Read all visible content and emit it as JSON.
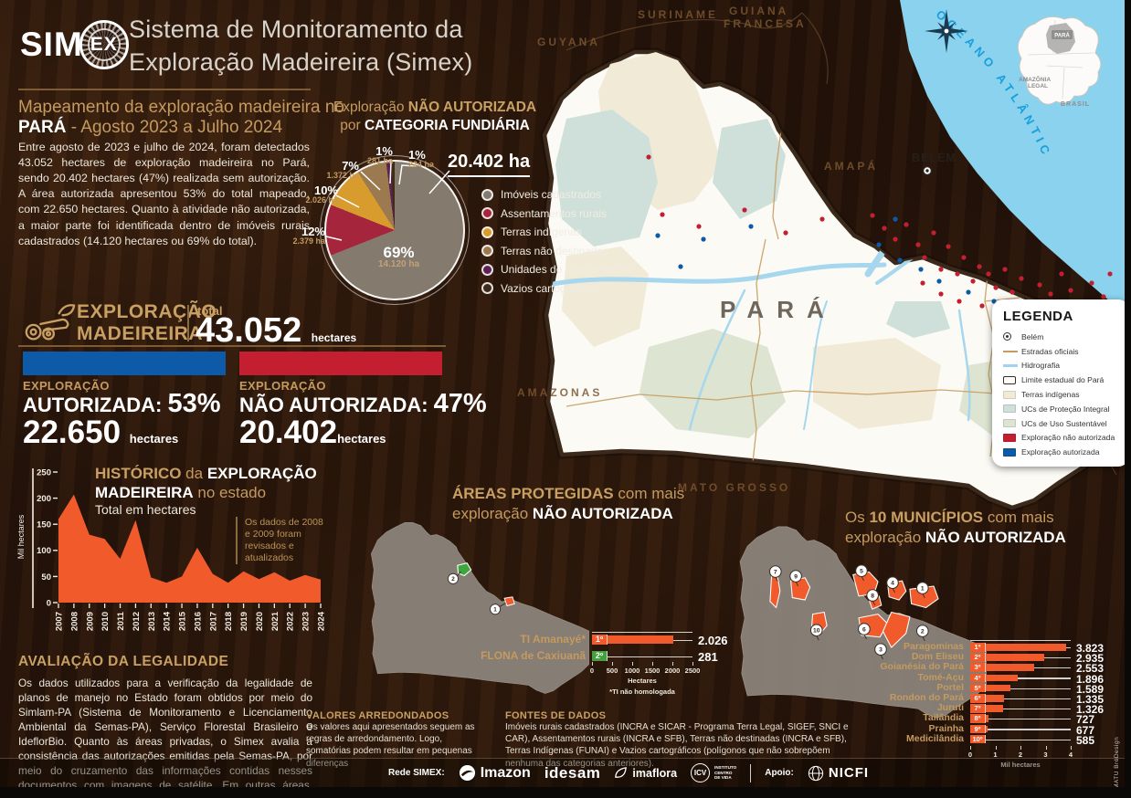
{
  "header": {
    "logo_sim": "SIM",
    "logo_ex": "EX",
    "title_line1": "Sistema de Monitoramento da",
    "title_line2": "Exploração Madeireira (Simex)"
  },
  "intro": {
    "heading_pre": "Mapeamento da exploração madeireira no",
    "heading_state": "PARÁ",
    "heading_period": " - Agosto 2023 a Julho 2024",
    "body": "Entre agosto de 2023 e julho de 2024, foram detectados 43.052 hectares de exploração madeireira no Pará, sendo 20.402 hectares (47%) realizada sem autorização. A área autorizada apresentou 53% do total mapeado, com 22.650 hectares. Quanto à atividade não autorizada, a maior parte foi identificada dentro de imóveis rurais cadastrados (14.120 hectares ou 69% do total)."
  },
  "pie": {
    "title_a": "Exploração ",
    "title_b": "NÃO AUTORIZADA",
    "title_c": "por ",
    "title_d": "CATEGORIA FUNDIÁRIA",
    "total_label": "20.402 ha"
  },
  "totals": {
    "section_line1": "EXPLORAÇÃO",
    "section_line2": "MADEIREIRA",
    "total_label": "total",
    "total_value": "43.052",
    "total_unit": "hectares",
    "authorized": {
      "kicker": "EXPLORAÇÃO",
      "label": "AUTORIZADA:",
      "pct": "53%",
      "value": "22.650",
      "unit": "hectares",
      "color": "#0d5ba8"
    },
    "unauthorized": {
      "kicker": "EXPLORAÇÃO",
      "label": "NÃO AUTORIZADA:",
      "pct": "47%",
      "value": "20.402",
      "unit": "hectares",
      "color": "#c41f31"
    }
  },
  "history": {
    "title_a": "HISTÓRICO",
    "title_b": " da ",
    "title_c": "EXPLORAÇÃO",
    "title_d": "MADEIREIRA",
    "title_e": " no estado",
    "subtitle": "Total em hectares",
    "note": "Os dados de 2008 e 2009 foram revisados e atualizados"
  },
  "legality": {
    "title": "AVALIAÇÃO DA LEGALIDADE",
    "body": "Os dados utilizados para a verificação da legalidade de planos de manejo no Estado foram obtidos por meio do Simlam-PA (Sistema de Monitoramento e Licenciamento Ambiental da Semas-PA), Serviço Florestal Brasileiro e IdeflorBio. Quanto às áreas privadas, o Simex avalia a consistência das autorizações emitidas pela Semas-PA, por meio do cruzamento das informações contidas nesses documentos com imagens de satélite. Em outras áreas, como florestas sob concessão, o sistema apenas verifica a existência de autorização para eventuais explorações detectadas."
  },
  "protected_section": {
    "title_a": "ÁREAS PROTEGIDAS",
    "title_b": " com mais",
    "title_c": "exploração ",
    "title_d": "NÃO AUTORIZADA"
  },
  "municipalities_section": {
    "title_a": "Os ",
    "title_b": "10 MUNICÍPIOS",
    "title_c": " com mais",
    "title_d": "exploração ",
    "title_e": "NÃO AUTORIZADA"
  },
  "map": {
    "ocean": "OCEANO ATLÂNTICO",
    "state_label": "PARÁ",
    "capital": "BELÉM",
    "neighbors": [
      "GUYANA",
      "SURINAME",
      "GUIANA",
      "FRANCESA",
      "AMAPÁ",
      "AMAZONAS",
      "MATO GROSSO",
      "TOCANTINS"
    ],
    "inset": {
      "para": "PARÁ",
      "amazonia_line1": "AMAZÔNIA",
      "amazonia_line2": "LEGAL",
      "brasil": "BRASIL"
    },
    "legend": {
      "title": "LEGENDA",
      "items": [
        {
          "symbol": "capital-dot",
          "label": "Belém"
        },
        {
          "symbol": "line",
          "color": "#c79d5f",
          "label": "Estradas oficiais"
        },
        {
          "symbol": "line",
          "color": "#9ed4ee",
          "label": "Hidrografia"
        },
        {
          "symbol": "outline",
          "label": "Limite estadual do Pará"
        },
        {
          "symbol": "fill",
          "color": "#f1ead6",
          "label": "Terras indígenas"
        },
        {
          "symbol": "fill",
          "color": "#cfe0db",
          "label": "UCs de Proteção Integral"
        },
        {
          "symbol": "fill",
          "color": "#dde4d1",
          "label": "UCs de Uso Sustentável"
        },
        {
          "symbol": "fill",
          "color": "#c41f31",
          "label": "Exploração não autorizada"
        },
        {
          "symbol": "fill",
          "color": "#0d5ba8",
          "label": "Exploração autorizada"
        }
      ]
    }
  },
  "footnotes": {
    "rounded_title": "VALORES ARREDONDADOS",
    "rounded_body": "Os valores aqui apresentados seguem as regras de arredondamento. Logo, somatórias podem resultar em pequenas diferenças",
    "sources_title": "FONTES DE DADOS",
    "sources_body": "Imóveis rurais cadastrados (INCRA e SICAR - Programa Terra Legal, SIGEF, SNCI e CAR), Assentamentos rurais (INCRA e SFB), Terras não destinadas (INCRA e SFB), Terras Indígenas (FUNAI) e Vazios cartográficos (polígonos que não sobrepõem nenhuma das categorias anteriores)."
  },
  "footer": {
    "rede_label": "Rede SIMEX:",
    "logo_imazon": "Imazon",
    "logo_idesam": "idesam",
    "logo_imaflora": "imaflora",
    "logo_icv": "ICV",
    "logo_icv_line1": "INSTITUTO",
    "logo_icv_line2": "CENTRO",
    "logo_icv_line3": "DE VIDA",
    "apoio_label": "Apoio:",
    "logo_nicfi": "NICFI",
    "credit": "MATU BróDesign"
  },
  "chart_data": [
    {
      "id": "historico",
      "type": "area",
      "title": "HISTÓRICO da EXPLORAÇÃO MADEIREIRA no estado",
      "subtitle": "Total em hectares",
      "ylabel": "Mil hectares",
      "ylim": [
        0,
        250
      ],
      "yticks": [
        0,
        50,
        100,
        150,
        200,
        250
      ],
      "grid": false,
      "categories": [
        "2007",
        "2008",
        "2009",
        "2010",
        "2011",
        "2012",
        "2013",
        "2014",
        "2015",
        "2016",
        "2017",
        "2018",
        "2019",
        "2020",
        "2021",
        "2022",
        "2023",
        "2024"
      ],
      "values": [
        160,
        207,
        130,
        122,
        84,
        158,
        48,
        38,
        50,
        105,
        55,
        38,
        60,
        45,
        58,
        42,
        53,
        44
      ],
      "color": "#f15b2b",
      "annotation": "Os dados de 2008 e 2009 foram revisados e atualizados"
    },
    {
      "id": "categoria-fundiaria",
      "type": "pie",
      "title": "Exploração NÃO AUTORIZADA por CATEGORIA FUNDIÁRIA",
      "total_label": "20.402 ha",
      "slices": [
        {
          "label": "Imóveis cadastrados",
          "pct": 69,
          "pct_label": "69%",
          "ha": 14120,
          "ha_label": "14.120 ha",
          "color": "#847a6d"
        },
        {
          "label": "Assentamentos rurais",
          "pct": 12,
          "pct_label": "12%",
          "ha": 2379,
          "ha_label": "2.379 ha",
          "color": "#a5263c"
        },
        {
          "label": "Terras indígenas",
          "pct": 10,
          "pct_label": "10%",
          "ha": 2026,
          "ha_label": "2.026 ha",
          "color": "#d89b2e"
        },
        {
          "label": "Terras não destinadas",
          "pct": 7,
          "pct_label": "7%",
          "ha": 1372,
          "ha_label": "1.372 ha",
          "color": "#9b7a50"
        },
        {
          "label": "Unidades de Conservação",
          "pct": 1,
          "pct_label": "1%",
          "ha": 281,
          "ha_label": "281 ha",
          "color": "#5e2152"
        },
        {
          "label": "Vazios cartográficos",
          "pct": 1,
          "pct_label": "1%",
          "ha": 224,
          "ha_label": "224 ha",
          "color": "#3f2c18"
        }
      ]
    },
    {
      "id": "areas-protegidas",
      "type": "bar",
      "title": "ÁREAS PROTEGIDAS com mais exploração NÃO AUTORIZADA",
      "xlabel": "Hectares",
      "xlim": [
        0,
        2500
      ],
      "xticks": [
        0,
        500,
        1000,
        1500,
        2000,
        2500
      ],
      "footnote": "*TI não homologada",
      "items": [
        {
          "rank": "1º",
          "name": "TI Amanayé*",
          "value": 2026,
          "value_label": "2.026",
          "color": "#f15b2b"
        },
        {
          "rank": "2º",
          "name": "FLONA de Caxiuanã",
          "value": 281,
          "value_label": "281",
          "color": "#44a13e"
        }
      ]
    },
    {
      "id": "municipios",
      "type": "bar",
      "title": "Os 10 MUNICÍPIOS com mais exploração NÃO AUTORIZADA",
      "xlabel": "Mil hectares",
      "xlim": [
        0,
        4
      ],
      "xticks": [
        0,
        1,
        2,
        3,
        4
      ],
      "items": [
        {
          "rank": "1º",
          "name": "Paragominas",
          "value": 3.823,
          "value_label": "3.823",
          "color": "#f15b2b"
        },
        {
          "rank": "2º",
          "name": "Dom Eliseu",
          "value": 2.935,
          "value_label": "2.935",
          "color": "#f15b2b"
        },
        {
          "rank": "3º",
          "name": "Goianésia do Pará",
          "value": 2.553,
          "value_label": "2.553",
          "color": "#f15b2b"
        },
        {
          "rank": "4º",
          "name": "Tomé-Açu",
          "value": 1.896,
          "value_label": "1.896",
          "color": "#f15b2b"
        },
        {
          "rank": "5º",
          "name": "Portel",
          "value": 1.589,
          "value_label": "1.589",
          "color": "#f15b2b"
        },
        {
          "rank": "6º",
          "name": "Rondon do Pará",
          "value": 1.335,
          "value_label": "1.335",
          "color": "#f15b2b"
        },
        {
          "rank": "7º",
          "name": "Juruti",
          "value": 1.326,
          "value_label": "1.326",
          "color": "#f15b2b"
        },
        {
          "rank": "8º",
          "name": "Tailândia",
          "value": 0.727,
          "value_label": "727",
          "color": "#f15b2b"
        },
        {
          "rank": "9º",
          "name": "Prainha",
          "value": 0.677,
          "value_label": "677",
          "color": "#f15b2b"
        },
        {
          "rank": "10º",
          "name": "Medicilândia",
          "value": 0.585,
          "value_label": "585",
          "color": "#f15b2b"
        }
      ]
    }
  ]
}
